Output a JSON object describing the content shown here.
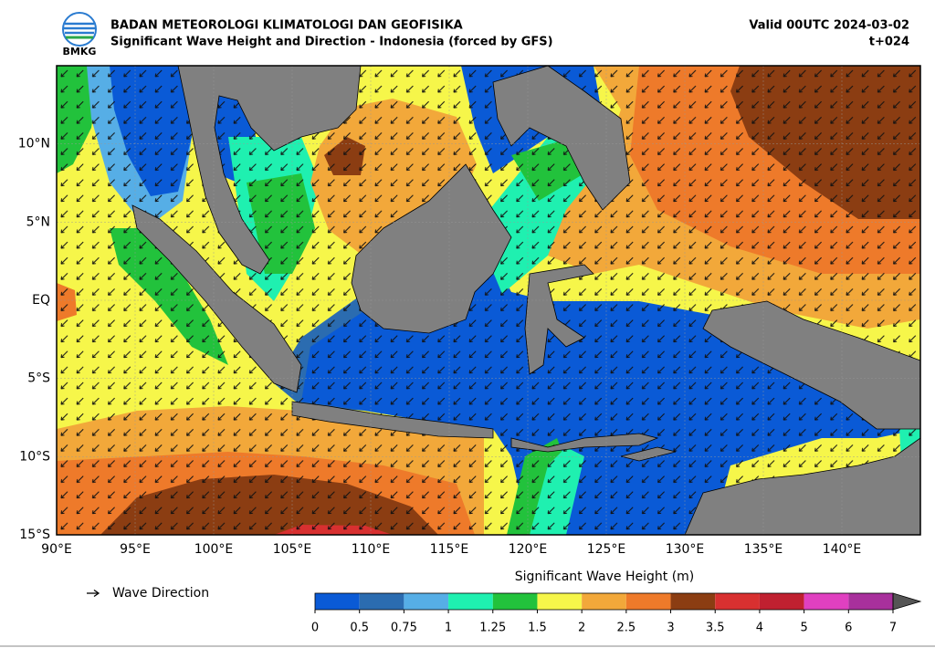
{
  "header": {
    "logo_text": "BMKG",
    "title": "BADAN METEOROLOGI KLIMATOLOGI DAN GEOFISIKA",
    "subtitle": "Significant Wave Height and Direction - Indonesia (forced by GFS)",
    "valid": "Valid 00UTC 2024-03-02",
    "lead": "t+024"
  },
  "map": {
    "lon_range": [
      90,
      145
    ],
    "lat_range": [
      -15,
      15
    ],
    "grid": true,
    "lon_ticks": [
      {
        "value": 90,
        "label": "90°E"
      },
      {
        "value": 95,
        "label": "95°E"
      },
      {
        "value": 100,
        "label": "100°E"
      },
      {
        "value": 105,
        "label": "105°E"
      },
      {
        "value": 110,
        "label": "110°E"
      },
      {
        "value": 115,
        "label": "115°E"
      },
      {
        "value": 120,
        "label": "120°E"
      },
      {
        "value": 125,
        "label": "125°E"
      },
      {
        "value": 130,
        "label": "130°E"
      },
      {
        "value": 135,
        "label": "135°E"
      },
      {
        "value": 140,
        "label": "140°E"
      }
    ],
    "lat_ticks": [
      {
        "value": 10,
        "label": "10°N"
      },
      {
        "value": 5,
        "label": "5°N"
      },
      {
        "value": 0,
        "label": "EQ"
      },
      {
        "value": -5,
        "label": "5°S"
      },
      {
        "value": -10,
        "label": "10°S"
      },
      {
        "value": -15,
        "label": "15°S"
      }
    ]
  },
  "legend": {
    "arrow_label": "Wave Direction"
  },
  "colorbar": {
    "title": "Significant Wave Height (m)",
    "levels": [
      0,
      0.5,
      0.75,
      1,
      1.25,
      1.5,
      2,
      2.5,
      3,
      3.5,
      4,
      5,
      6,
      7
    ],
    "colors": [
      "#0a5ad6",
      "#2b6cb0",
      "#56aee6",
      "#1ff0b0",
      "#22c23c",
      "#f6f64a",
      "#f2a83a",
      "#ee7a2a",
      "#8b3d12",
      "#d83030",
      "#c02030",
      "#e040c0",
      "#a8309c"
    ],
    "extend_color": "#555555"
  }
}
